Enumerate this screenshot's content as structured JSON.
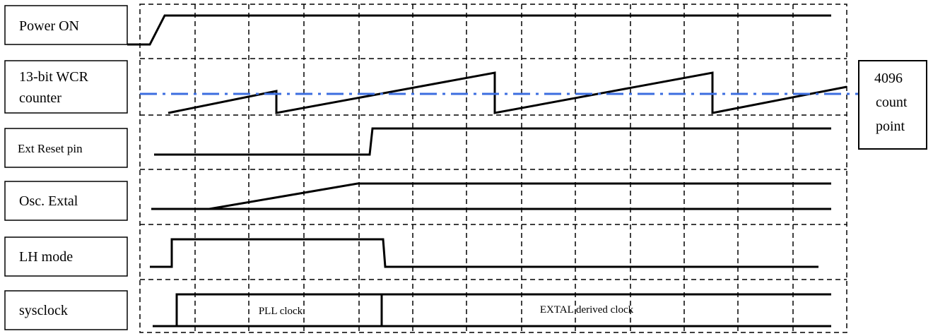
{
  "signals": [
    {
      "id": "power-on",
      "label_lines": [
        "Power ON"
      ]
    },
    {
      "id": "wcr-counter",
      "label_lines": [
        "13-bit WCR",
        "counter"
      ]
    },
    {
      "id": "ext-reset",
      "label_lines": [
        "Ext Reset pin"
      ]
    },
    {
      "id": "osc-extal",
      "label_lines": [
        "Osc. Extal"
      ]
    },
    {
      "id": "lh-mode",
      "label_lines": [
        "LH mode"
      ]
    },
    {
      "id": "sysclock",
      "label_lines": [
        "sysclock"
      ]
    }
  ],
  "threshold": {
    "label_lines": [
      "4096",
      "count",
      "point"
    ],
    "color": "#3c6ee0"
  },
  "clock_segments": {
    "pll": "PLL clock",
    "extal": "EXTAL derived clock"
  }
}
